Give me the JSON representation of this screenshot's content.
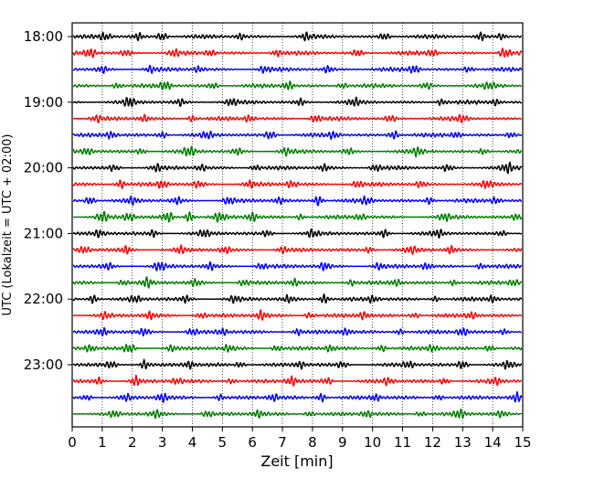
{
  "chart_data": {
    "type": "line",
    "xlabel": "Zeit  [min]",
    "ylabel": "UTC (Lokalzeit = UTC + 02:00)",
    "xlim": [
      0,
      15
    ],
    "x_ticks": [
      0,
      1,
      2,
      3,
      4,
      5,
      6,
      7,
      8,
      9,
      10,
      11,
      12,
      13,
      14,
      15
    ],
    "x_tick_labels": [
      "0",
      "1",
      "2",
      "3",
      "4",
      "5",
      "6",
      "7",
      "8",
      "9",
      "10",
      "11",
      "12",
      "13",
      "14",
      "15"
    ],
    "y_tick_labels": [
      "18:00",
      "19:00",
      "20:00",
      "21:00",
      "22:00",
      "23:00"
    ],
    "trace_interval_minutes": 15,
    "traces_per_hour": 4,
    "trace_count": 24,
    "trace_colors": [
      "#000000",
      "#ff0000",
      "#0000ff",
      "#008000"
    ],
    "grid_x": true,
    "grid_y": false,
    "traces": [
      {
        "start": "18:00",
        "color": "#000000",
        "bursts": [
          [
            1.1,
            0.7
          ],
          [
            2.2,
            0.6
          ],
          [
            3.0,
            0.9
          ],
          [
            5.6,
            0.6
          ],
          [
            7.8,
            0.6
          ],
          [
            10.4,
            0.7
          ],
          [
            13.6,
            0.7
          ],
          [
            14.3,
            0.6
          ]
        ]
      },
      {
        "start": "18:15",
        "color": "#ff0000",
        "bursts": [
          [
            0.6,
            1.0
          ],
          [
            1.8,
            0.6
          ],
          [
            3.4,
            0.6
          ],
          [
            4.6,
            0.6
          ],
          [
            6.8,
            0.6
          ],
          [
            9.5,
            0.6
          ],
          [
            12.0,
            0.6
          ],
          [
            14.4,
            1.0
          ]
        ]
      },
      {
        "start": "18:30",
        "color": "#0000ff",
        "bursts": [
          [
            1.0,
            0.6
          ],
          [
            2.6,
            0.6
          ],
          [
            4.2,
            0.6
          ],
          [
            6.4,
            0.6
          ],
          [
            8.5,
            0.6
          ],
          [
            11.4,
            0.8
          ],
          [
            13.2,
            0.6
          ]
        ]
      },
      {
        "start": "18:45",
        "color": "#008000",
        "bursts": [
          [
            1.5,
            0.6
          ],
          [
            3.1,
            0.9
          ],
          [
            4.7,
            0.6
          ],
          [
            7.2,
            0.9
          ],
          [
            9.0,
            0.6
          ],
          [
            11.8,
            0.6
          ],
          [
            13.9,
            0.6
          ]
        ]
      },
      {
        "start": "19:00",
        "color": "#000000",
        "bursts": [
          [
            1.9,
            0.9
          ],
          [
            3.6,
            0.6
          ],
          [
            5.3,
            0.6
          ],
          [
            7.6,
            0.6
          ],
          [
            9.4,
            0.6
          ],
          [
            12.3,
            0.6
          ],
          [
            14.1,
            0.6
          ]
        ]
      },
      {
        "start": "19:15",
        "color": "#ff0000",
        "bursts": [
          [
            0.8,
            0.6
          ],
          [
            2.4,
            0.6
          ],
          [
            4.0,
            0.6
          ],
          [
            5.9,
            0.6
          ],
          [
            8.1,
            0.7
          ],
          [
            10.6,
            0.6
          ],
          [
            13.0,
            0.6
          ]
        ]
      },
      {
        "start": "19:30",
        "color": "#0000ff",
        "bursts": [
          [
            1.3,
            0.6
          ],
          [
            3.0,
            0.7
          ],
          [
            4.5,
            0.6
          ],
          [
            6.6,
            0.9
          ],
          [
            8.7,
            0.6
          ],
          [
            10.7,
            0.9
          ],
          [
            12.8,
            0.6
          ],
          [
            14.6,
            0.6
          ]
        ]
      },
      {
        "start": "19:45",
        "color": "#008000",
        "bursts": [
          [
            0.5,
            0.6
          ],
          [
            2.3,
            0.6
          ],
          [
            3.9,
            0.9
          ],
          [
            5.5,
            0.6
          ],
          [
            7.1,
            0.6
          ],
          [
            9.2,
            0.6
          ],
          [
            11.5,
            0.7
          ],
          [
            13.7,
            0.6
          ]
        ]
      },
      {
        "start": "20:00",
        "color": "#000000",
        "bursts": [
          [
            1.4,
            0.6
          ],
          [
            2.8,
            0.6
          ],
          [
            4.3,
            0.6
          ],
          [
            6.1,
            0.6
          ],
          [
            8.4,
            0.6
          ],
          [
            10.1,
            0.6
          ],
          [
            12.5,
            0.6
          ],
          [
            14.5,
            0.9
          ]
        ]
      },
      {
        "start": "20:15",
        "color": "#ff0000",
        "bursts": [
          [
            1.6,
            0.9
          ],
          [
            3.0,
            0.7
          ],
          [
            4.2,
            0.6
          ],
          [
            5.9,
            0.6
          ],
          [
            7.3,
            0.7
          ],
          [
            9.5,
            0.6
          ],
          [
            11.6,
            0.6
          ],
          [
            13.8,
            0.6
          ]
        ]
      },
      {
        "start": "20:30",
        "color": "#0000ff",
        "bursts": [
          [
            0.6,
            0.9
          ],
          [
            2.0,
            0.6
          ],
          [
            3.5,
            0.6
          ],
          [
            5.2,
            0.7
          ],
          [
            6.9,
            0.6
          ],
          [
            8.2,
            1.0
          ],
          [
            9.8,
            0.7
          ],
          [
            11.9,
            0.7
          ],
          [
            14.1,
            0.6
          ]
        ]
      },
      {
        "start": "20:45",
        "color": "#008000",
        "bursts": [
          [
            1.0,
            1.0
          ],
          [
            1.9,
            0.8
          ],
          [
            3.2,
            1.0
          ],
          [
            3.9,
            1.0
          ],
          [
            4.9,
            0.8
          ],
          [
            6.0,
            0.9
          ],
          [
            7.6,
            0.6
          ],
          [
            9.6,
            0.6
          ],
          [
            12.4,
            0.6
          ],
          [
            14.8,
            0.7
          ]
        ]
      },
      {
        "start": "21:00",
        "color": "#000000",
        "bursts": [
          [
            0.9,
            0.6
          ],
          [
            2.7,
            0.6
          ],
          [
            4.4,
            0.6
          ],
          [
            6.5,
            0.6
          ],
          [
            8.0,
            0.7
          ],
          [
            10.4,
            0.8
          ],
          [
            12.2,
            0.6
          ],
          [
            14.3,
            0.6
          ]
        ]
      },
      {
        "start": "21:15",
        "color": "#ff0000",
        "bursts": [
          [
            0.4,
            0.6
          ],
          [
            1.8,
            0.6
          ],
          [
            3.6,
            0.6
          ],
          [
            5.1,
            0.6
          ],
          [
            7.0,
            0.6
          ],
          [
            9.9,
            0.6
          ],
          [
            11.3,
            0.6
          ],
          [
            12.6,
            0.7
          ]
        ]
      },
      {
        "start": "21:30",
        "color": "#0000ff",
        "bursts": [
          [
            1.2,
            0.6
          ],
          [
            2.9,
            0.9
          ],
          [
            4.6,
            0.6
          ],
          [
            6.3,
            0.6
          ],
          [
            8.4,
            0.8
          ],
          [
            10.2,
            0.6
          ],
          [
            11.8,
            0.6
          ],
          [
            13.6,
            0.6
          ]
        ]
      },
      {
        "start": "21:45",
        "color": "#008000",
        "bursts": [
          [
            1.7,
            0.6
          ],
          [
            2.5,
            0.9
          ],
          [
            4.1,
            0.6
          ],
          [
            5.7,
            0.6
          ],
          [
            7.4,
            0.6
          ],
          [
            9.3,
            0.6
          ],
          [
            10.8,
            0.6
          ],
          [
            12.7,
            0.6
          ],
          [
            14.7,
            0.6
          ]
        ]
      },
      {
        "start": "22:00",
        "color": "#000000",
        "bursts": [
          [
            0.7,
            0.9
          ],
          [
            2.1,
            0.6
          ],
          [
            3.8,
            0.6
          ],
          [
            5.4,
            0.6
          ],
          [
            7.2,
            0.6
          ],
          [
            8.4,
            1.0
          ],
          [
            10.0,
            0.6
          ],
          [
            12.1,
            0.6
          ],
          [
            14.0,
            0.6
          ]
        ]
      },
      {
        "start": "22:15",
        "color": "#ff0000",
        "bursts": [
          [
            1.1,
            0.6
          ],
          [
            2.6,
            0.6
          ],
          [
            4.3,
            0.6
          ],
          [
            6.3,
            0.9
          ],
          [
            7.9,
            0.6
          ],
          [
            9.7,
            0.7
          ],
          [
            11.4,
            0.6
          ],
          [
            13.3,
            0.6
          ]
        ]
      },
      {
        "start": "22:30",
        "color": "#0000ff",
        "bursts": [
          [
            1.0,
            0.7
          ],
          [
            2.4,
            0.6
          ],
          [
            4.0,
            0.6
          ],
          [
            5.0,
            0.6
          ],
          [
            7.5,
            0.6
          ],
          [
            9.1,
            0.6
          ],
          [
            10.9,
            0.6
          ],
          [
            13.0,
            0.8
          ],
          [
            14.4,
            0.6
          ]
        ]
      },
      {
        "start": "22:45",
        "color": "#008000",
        "bursts": [
          [
            0.6,
            0.6
          ],
          [
            1.9,
            0.9
          ],
          [
            3.3,
            0.6
          ],
          [
            5.2,
            0.6
          ],
          [
            6.8,
            0.6
          ],
          [
            8.6,
            0.6
          ],
          [
            10.3,
            0.7
          ],
          [
            12.0,
            0.6
          ],
          [
            13.9,
            0.7
          ]
        ]
      },
      {
        "start": "23:00",
        "color": "#000000",
        "bursts": [
          [
            1.3,
            0.6
          ],
          [
            2.4,
            0.9
          ],
          [
            3.9,
            0.6
          ],
          [
            5.6,
            0.6
          ],
          [
            7.6,
            0.6
          ],
          [
            9.0,
            0.6
          ],
          [
            11.2,
            0.6
          ],
          [
            13.0,
            0.9
          ],
          [
            14.5,
            0.6
          ]
        ]
      },
      {
        "start": "23:15",
        "color": "#ff0000",
        "bursts": [
          [
            0.9,
            0.6
          ],
          [
            2.1,
            0.9
          ],
          [
            3.5,
            0.6
          ],
          [
            5.3,
            0.6
          ],
          [
            7.3,
            0.9
          ],
          [
            8.5,
            0.7
          ],
          [
            10.5,
            0.6
          ],
          [
            12.4,
            0.6
          ],
          [
            14.1,
            0.6
          ]
        ]
      },
      {
        "start": "23:30",
        "color": "#0000ff",
        "bursts": [
          [
            0.5,
            0.6
          ],
          [
            1.8,
            0.6
          ],
          [
            3.0,
            0.8
          ],
          [
            4.9,
            0.6
          ],
          [
            6.7,
            0.6
          ],
          [
            8.3,
            0.9
          ],
          [
            10.1,
            0.6
          ],
          [
            12.2,
            0.6
          ],
          [
            14.8,
            0.8
          ]
        ]
      },
      {
        "start": "23:45",
        "color": "#008000",
        "bursts": [
          [
            1.4,
            0.6
          ],
          [
            2.8,
            0.6
          ],
          [
            4.5,
            0.6
          ],
          [
            6.2,
            0.6
          ],
          [
            7.9,
            0.6
          ],
          [
            9.8,
            0.6
          ],
          [
            11.6,
            0.6
          ],
          [
            12.9,
            0.8
          ],
          [
            14.3,
            0.6
          ]
        ]
      }
    ]
  }
}
